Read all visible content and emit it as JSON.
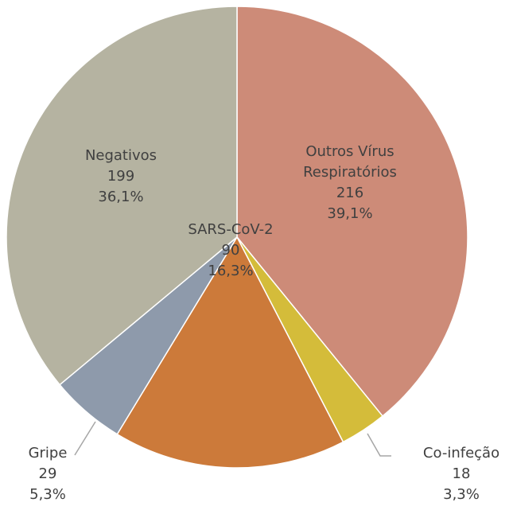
{
  "chart_data": {
    "type": "pie",
    "categories": [
      "Outros Vírus Respiratórios",
      "Co-infeção",
      "SARS-CoV-2",
      "Gripe",
      "Negativos"
    ],
    "values": [
      216,
      18,
      90,
      29,
      199
    ],
    "shares": [
      39.1,
      3.3,
      16.3,
      5.3,
      36.1
    ],
    "share_labels": [
      "39,1%",
      "3,3%",
      "16,3%",
      "5,3%",
      "36,1%"
    ],
    "colors": [
      "#cd8b78",
      "#d4bc3a",
      "#cc7a3a",
      "#8e9aab",
      "#b5b3a1"
    ]
  }
}
